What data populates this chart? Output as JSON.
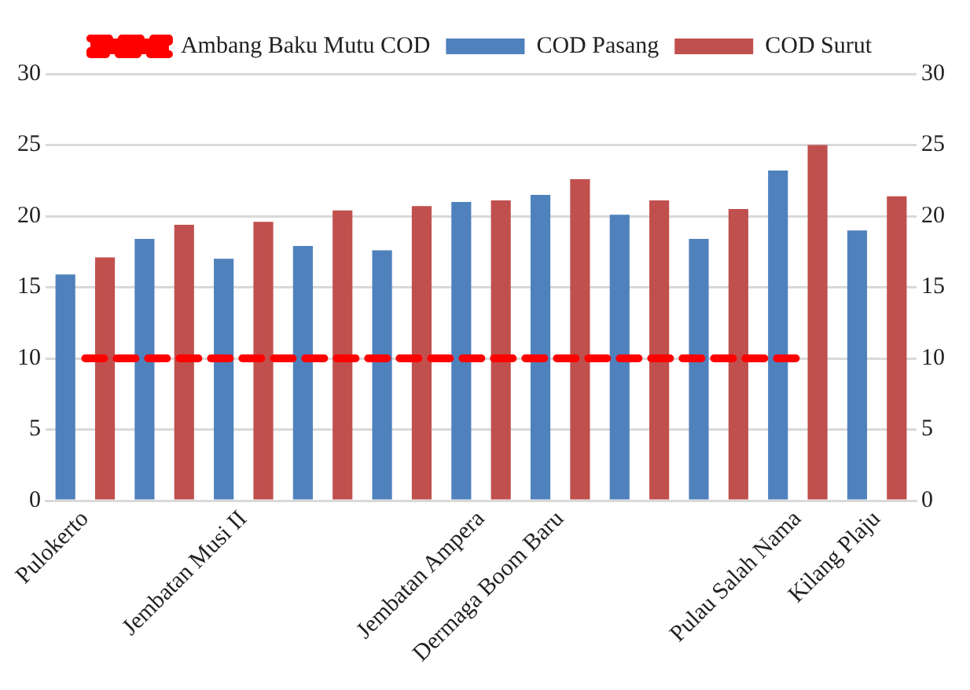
{
  "chart_data": {
    "type": "bar",
    "categories": [
      "Pulokerto",
      null,
      "Jembatan Musi II",
      null,
      null,
      "Jembatan Ampera",
      "Dermaga Boom Baru",
      null,
      null,
      "Pulau Salah Nama",
      "Kilang Plaju"
    ],
    "series": [
      {
        "name": "COD Pasang",
        "color": "#4f81bd",
        "values": [
          15.9,
          18.4,
          17.0,
          17.9,
          17.6,
          21.0,
          21.5,
          20.1,
          18.4,
          23.2,
          19.0
        ]
      },
      {
        "name": "COD Surut",
        "color": "#c0504d",
        "values": [
          17.1,
          19.4,
          19.6,
          20.4,
          20.7,
          21.1,
          22.6,
          21.1,
          20.5,
          25.0,
          21.4
        ]
      },
      {
        "name": "Ambang Baku Mutu COD",
        "type": "line",
        "color": "#ff0000",
        "line_style": "dashed",
        "marker": "none",
        "values": [
          10,
          10,
          10,
          10,
          10,
          10,
          10,
          10,
          10,
          10,
          null
        ]
      }
    ],
    "ylim": [
      0,
      30
    ],
    "yticks": [
      0,
      5,
      10,
      15,
      20,
      25,
      30
    ],
    "y2lim": [
      0,
      30
    ],
    "y2ticks": [
      0,
      5,
      10,
      15,
      20,
      25,
      30
    ],
    "grid": "y",
    "legend": "top"
  }
}
